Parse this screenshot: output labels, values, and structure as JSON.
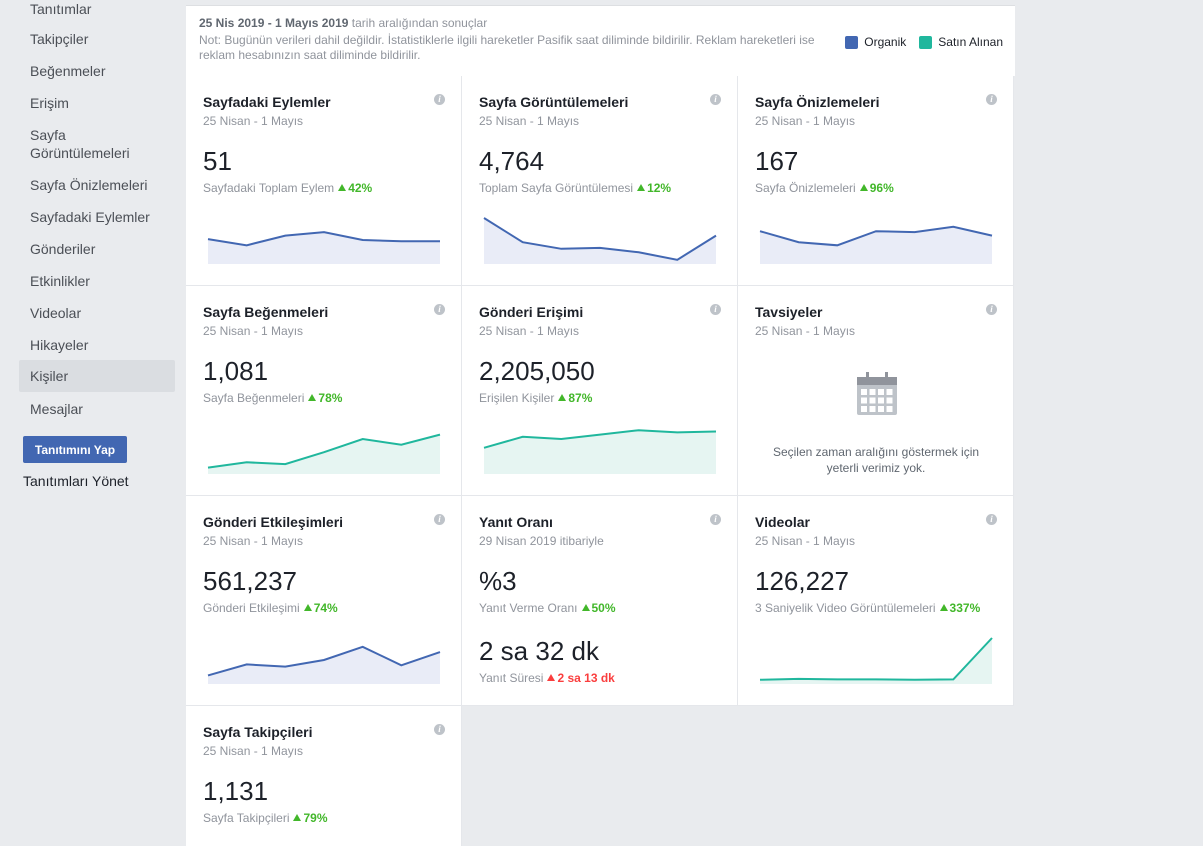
{
  "sidebar": {
    "items": [
      "Tanıtımlar",
      "Takipçiler",
      "Beğenmeler",
      "Erişim",
      "Sayfa Görüntülemeleri",
      "Sayfa Önizlemeleri",
      "Sayfadaki Eylemler",
      "Gönderiler",
      "Etkinlikler",
      "Videolar",
      "Hikayeler",
      "Kişiler",
      "Mesajlar"
    ],
    "promote_label": "Tanıtımını Yap",
    "manage_label": "Tanıtımları Yönet"
  },
  "header": {
    "range_bold": "25 Nis 2019 - 1 Mayıs 2019",
    "range_rest": " tarih aralığından sonuçlar",
    "note": "Not: Bugünün verileri dahil değildir. İstatistiklerle ilgili hareketler Pasifik saat diliminde bildirilir. Reklam hareketleri ise reklam hesabınızın saat diliminde bildirilir.",
    "legend_organic": "Organik",
    "legend_paid": "Satın Alınan",
    "color_organic": "#4267b2",
    "color_paid": "#20b79d"
  },
  "cards": [
    {
      "title": "Sayfadaki Eylemler",
      "sub": "25 Nisan - 1 Mayıs",
      "value": "51",
      "caption": "Sayfadaki Toplam Eylem",
      "delta": "42%",
      "dir": "up",
      "series": "organic",
      "spark": [
        0.52,
        0.38,
        0.6,
        0.68,
        0.5,
        0.47,
        0.47
      ]
    },
    {
      "title": "Sayfa Görüntülemeleri",
      "sub": "25 Nisan - 1 Mayıs",
      "value": "4,764",
      "caption": "Toplam Sayfa Görüntülemesi",
      "delta": "12%",
      "dir": "up",
      "series": "organic",
      "spark": [
        1.0,
        0.45,
        0.3,
        0.32,
        0.22,
        0.05,
        0.6
      ]
    },
    {
      "title": "Sayfa Önizlemeleri",
      "sub": "25 Nisan - 1 Mayıs",
      "value": "167",
      "caption": "Sayfa Önizlemeleri",
      "delta": "96%",
      "dir": "up",
      "series": "organic",
      "spark": [
        0.7,
        0.45,
        0.38,
        0.7,
        0.68,
        0.8,
        0.6
      ]
    },
    {
      "title": "Sayfa Beğenmeleri",
      "sub": "25 Nisan - 1 Mayıs",
      "value": "1,081",
      "caption": "Sayfa Beğenmeleri",
      "delta": "78%",
      "dir": "up",
      "series": "paid",
      "spark": [
        0.1,
        0.22,
        0.18,
        0.45,
        0.75,
        0.62,
        0.85
      ]
    },
    {
      "title": "Gönderi Erişimi",
      "sub": "25 Nisan - 1 Mayıs",
      "value": "2,205,050",
      "caption": "Erişilen Kişiler",
      "delta": "87%",
      "dir": "up",
      "series": "paid",
      "spark": [
        0.55,
        0.8,
        0.75,
        0.85,
        0.95,
        0.9,
        0.92
      ]
    },
    {
      "title": "Tavsiyeler",
      "sub": "25 Nisan - 1 Mayıs",
      "empty": "Seçilen zaman aralığını göstermek için yeterli verimiz yok."
    },
    {
      "title": "Gönderi Etkileşimleri",
      "sub": "25 Nisan - 1 Mayıs",
      "value": "561,237",
      "caption": "Gönderi Etkileşimi",
      "delta": "74%",
      "dir": "up",
      "series": "organic",
      "spark": [
        0.15,
        0.4,
        0.35,
        0.5,
        0.8,
        0.38,
        0.68
      ]
    },
    {
      "title": "Yanıt Oranı",
      "sub": "29 Nisan 2019 itibariyle",
      "value": "%3",
      "caption": "Yanıt Verme Oranı",
      "delta": "50%",
      "dir": "up",
      "value2": "2 sa 32 dk",
      "caption2": "Yanıt Süresi",
      "delta2": "2 sa 13 dk",
      "dir2": "down"
    },
    {
      "title": "Videolar",
      "sub": "25 Nisan - 1 Mayıs",
      "value": "126,227",
      "caption": "3 Saniyelik Video Görüntülemeleri",
      "delta": "337%",
      "dir": "up",
      "series": "paid",
      "spark": [
        0.05,
        0.07,
        0.06,
        0.06,
        0.05,
        0.06,
        1.0
      ]
    },
    {
      "title": "Sayfa Takipçileri",
      "sub": "25 Nisan - 1 Mayıs",
      "value": "1,131",
      "caption": "Sayfa Takipçileri",
      "delta": "79%",
      "dir": "up"
    }
  ]
}
